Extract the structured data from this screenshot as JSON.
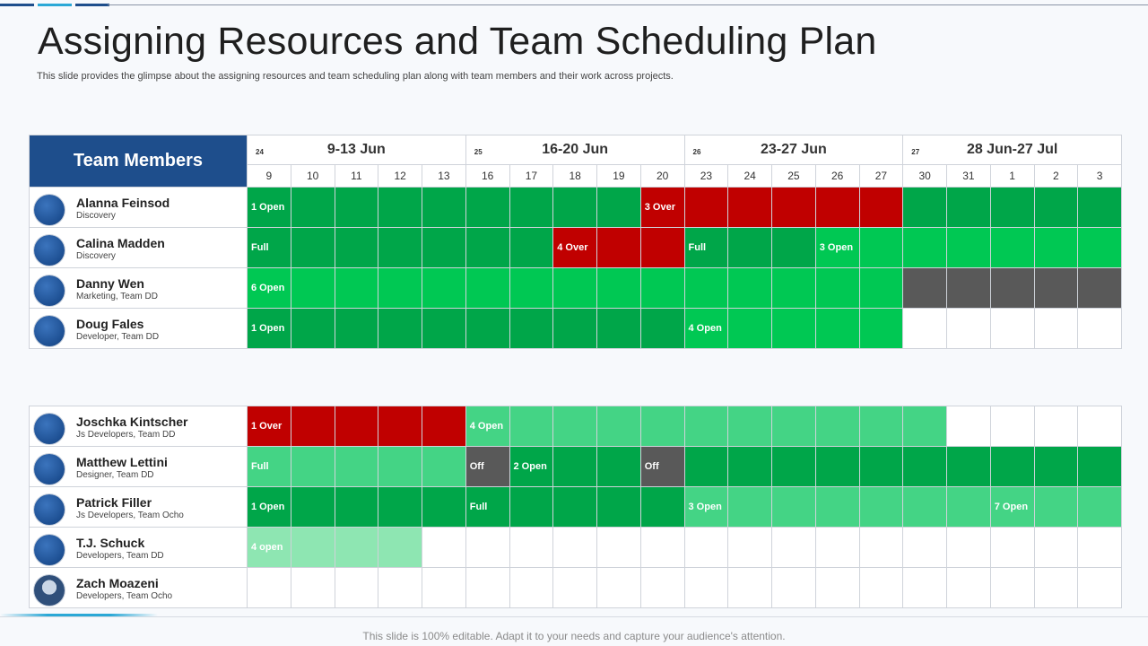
{
  "colors": {
    "accent_blue": "#1e4e8c",
    "light_blue": "#2ba8d6",
    "green_dark": "#00a649",
    "green": "#00c853",
    "green_mid": "#44d485",
    "green_light": "#8ee6b2",
    "red": "#c00000",
    "gray": "#595959"
  },
  "title": "Assigning Resources and Team Scheduling Plan",
  "subtitle": "This slide provides the glimpse about the assigning resources and team scheduling plan along with team members and their work across projects.",
  "header": {
    "team_label": "Team Members"
  },
  "weeks": [
    {
      "num": "24",
      "label": "9-13 Jun"
    },
    {
      "num": "25",
      "label": "16-20 Jun"
    },
    {
      "num": "26",
      "label": "23-27 Jun"
    },
    {
      "num": "27",
      "label": "28 Jun-27 Jul"
    }
  ],
  "days": [
    "9",
    "10",
    "11",
    "12",
    "13",
    "16",
    "17",
    "18",
    "19",
    "20",
    "23",
    "24",
    "25",
    "26",
    "27",
    "30",
    "31",
    "1",
    "2",
    "3"
  ],
  "group1": [
    {
      "name": "Alanna Feinsod",
      "role": "Discovery",
      "segments": [
        [
          "g1",
          9,
          "1 Open"
        ],
        [
          "r",
          6,
          "3 Over"
        ],
        [
          "g1",
          5,
          ""
        ]
      ]
    },
    {
      "name": "Calina Madden",
      "role": "Discovery",
      "segments": [
        [
          "g1",
          7,
          "Full"
        ],
        [
          "r",
          3,
          "4 Over"
        ],
        [
          "g1",
          3,
          "Full"
        ],
        [
          "g2",
          7,
          "3 Open"
        ]
      ]
    },
    {
      "name": "Danny Wen",
      "role": "Marketing, Team DD",
      "segments": [
        [
          "g2",
          15,
          "6 Open"
        ],
        [
          "gy",
          5,
          ""
        ]
      ]
    },
    {
      "name": "Doug Fales",
      "role": "Developer, Team DD",
      "segments": [
        [
          "g1",
          10,
          "1 Open"
        ],
        [
          "g2",
          5,
          "4 Open"
        ],
        [
          "w",
          5,
          ""
        ]
      ]
    }
  ],
  "group2": [
    {
      "name": "Joschka Kintscher",
      "role": "Js Developers, Team DD",
      "segments": [
        [
          "r",
          5,
          "1 Over"
        ],
        [
          "g3",
          11,
          "4 Open"
        ],
        [
          "w",
          4,
          ""
        ]
      ]
    },
    {
      "name": "Matthew Lettini",
      "role": "Designer, Team DD",
      "segments": [
        [
          "g3",
          5,
          "Full"
        ],
        [
          "gy",
          1,
          "Off"
        ],
        [
          "g1",
          3,
          "2 Open"
        ],
        [
          "gy",
          1,
          "Off"
        ],
        [
          "g1",
          10,
          ""
        ]
      ]
    },
    {
      "name": "Patrick Filler",
      "role": "Js Developers, Team Ocho",
      "segments": [
        [
          "g1",
          5,
          "1 Open"
        ],
        [
          "g1",
          5,
          "Full"
        ],
        [
          "g3",
          7,
          "3 Open"
        ],
        [
          "g3",
          3,
          "7 Open"
        ]
      ]
    },
    {
      "name": "T.J. Schuck",
      "role": "Developers, Team DD",
      "segments": [
        [
          "g4",
          4,
          "4 open"
        ],
        [
          "w",
          16,
          ""
        ]
      ]
    },
    {
      "name": "Zach Moazeni",
      "role": "Developers, Team Ocho",
      "photo": true,
      "segments": [
        [
          "w",
          20,
          ""
        ]
      ]
    }
  ],
  "footer": "This slide is 100% editable. Adapt it to your needs and capture your audience's attention."
}
